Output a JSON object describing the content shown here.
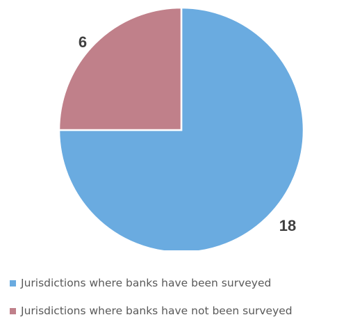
{
  "chart_data": {
    "type": "pie",
    "title": "",
    "slices": [
      {
        "label": "Jurisdictions where banks have been surveyed",
        "value": 18,
        "color": "#6aabe0"
      },
      {
        "label": "Jurisdictions where banks have not been surveyed",
        "value": 6,
        "color": "#c0808a"
      }
    ],
    "data_labels": [
      "18",
      "6"
    ],
    "legend_position": "bottom",
    "start_angle": "12 o'clock",
    "direction": "clockwise",
    "slice_border_color": "#ffffff"
  }
}
